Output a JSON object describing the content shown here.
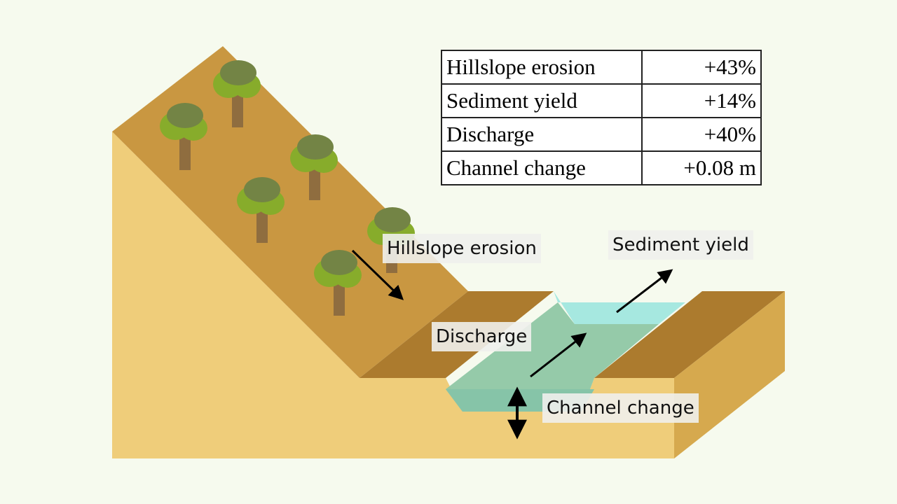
{
  "table": {
    "rows": [
      {
        "metric": "Hillslope erosion",
        "value": "+43%"
      },
      {
        "metric": "Sediment yield",
        "value": "+14%"
      },
      {
        "metric": "Discharge",
        "value": "+40%"
      },
      {
        "metric": "Channel change",
        "value": "+0.08 m"
      }
    ]
  },
  "labels": {
    "hillslope_erosion": "Hillslope erosion",
    "sediment_yield": "Sediment yield",
    "discharge": "Discharge",
    "channel_change": "Channel change"
  },
  "colors": {
    "background": "#f6faee",
    "slope_front": "#efcd7a",
    "slope_top": "#c99741",
    "bank_dark": "#ac7b2e",
    "water_light": "#a6e8e0",
    "water": "#8fc7a4",
    "tree_canopy": "#738445",
    "tree_leaves": "#87ac2b",
    "tree_trunk": "#8f6d3f"
  }
}
